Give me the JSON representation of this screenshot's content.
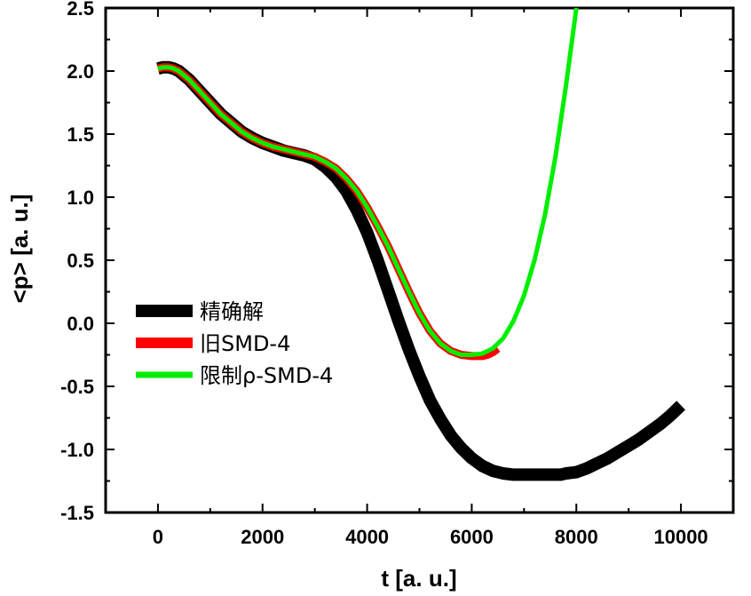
{
  "chart_data": {
    "type": "line",
    "xlabel": "t [a. u.]",
    "ylabel": "<p> [a. u.]",
    "xlim": [
      -1000,
      11000
    ],
    "ylim": [
      -1.5,
      2.5
    ],
    "xticks": [
      0,
      2000,
      4000,
      6000,
      8000,
      10000
    ],
    "xtick_labels": [
      "0",
      "2000",
      "4000",
      "6000",
      "8000",
      "10000"
    ],
    "yticks": [
      -1.5,
      -1.0,
      -0.5,
      0.0,
      0.5,
      1.0,
      1.5,
      2.0,
      2.5
    ],
    "ytick_labels": [
      "-1.5",
      "-1.0",
      "-0.5",
      "0.0",
      "0.5",
      "1.0",
      "1.5",
      "2.0",
      "2.5"
    ],
    "grid": false,
    "legend_position": "center-left",
    "series": [
      {
        "name": "精确解",
        "color": "#000000",
        "x": [
          0,
          100,
          200,
          300,
          400,
          600,
          800,
          1000,
          1200,
          1400,
          1600,
          1800,
          2000,
          2200,
          2400,
          2600,
          2800,
          3000,
          3200,
          3400,
          3600,
          3800,
          4000,
          4200,
          4400,
          4600,
          4800,
          5000,
          5200,
          5400,
          5600,
          5800,
          6000,
          6200,
          6400,
          6600,
          6800,
          7000,
          7200,
          7400,
          7600,
          7700,
          7800,
          8000,
          8200,
          8400,
          8600,
          8800,
          9000,
          9200,
          9400,
          9600,
          9800,
          10000
        ],
        "y": [
          2.02,
          2.03,
          2.03,
          2.02,
          2.0,
          1.93,
          1.84,
          1.75,
          1.66,
          1.59,
          1.52,
          1.47,
          1.43,
          1.4,
          1.37,
          1.35,
          1.33,
          1.3,
          1.24,
          1.16,
          1.05,
          0.9,
          0.72,
          0.5,
          0.26,
          0.02,
          -0.21,
          -0.42,
          -0.61,
          -0.76,
          -0.89,
          -0.99,
          -1.07,
          -1.13,
          -1.17,
          -1.19,
          -1.2,
          -1.2,
          -1.2,
          -1.2,
          -1.2,
          -1.2,
          -1.19,
          -1.18,
          -1.15,
          -1.11,
          -1.07,
          -1.02,
          -0.97,
          -0.92,
          -0.86,
          -0.8,
          -0.73,
          -0.65
        ]
      },
      {
        "name": "旧SMD-4",
        "color": "#ff0000",
        "x": [
          0,
          100,
          200,
          300,
          400,
          600,
          800,
          1000,
          1200,
          1400,
          1600,
          1800,
          2000,
          2200,
          2400,
          2600,
          2800,
          3000,
          3200,
          3400,
          3600,
          3800,
          4000,
          4200,
          4400,
          4600,
          4800,
          5000,
          5200,
          5400,
          5600,
          5800,
          6000,
          6200,
          6300,
          6400,
          6500
        ],
        "y": [
          2.02,
          2.03,
          2.03,
          2.02,
          2.0,
          1.93,
          1.84,
          1.75,
          1.66,
          1.59,
          1.52,
          1.47,
          1.43,
          1.4,
          1.38,
          1.36,
          1.34,
          1.32,
          1.28,
          1.23,
          1.15,
          1.05,
          0.92,
          0.77,
          0.61,
          0.43,
          0.25,
          0.08,
          -0.06,
          -0.16,
          -0.22,
          -0.25,
          -0.26,
          -0.26,
          -0.25,
          -0.23,
          -0.2
        ]
      },
      {
        "name": "限制ρ-SMD-4",
        "color": "#00ee00",
        "x": [
          0,
          100,
          200,
          300,
          400,
          600,
          800,
          1000,
          1200,
          1400,
          1600,
          1800,
          2000,
          2200,
          2400,
          2600,
          2800,
          3000,
          3200,
          3400,
          3600,
          3800,
          4000,
          4200,
          4400,
          4600,
          4800,
          5000,
          5200,
          5400,
          5600,
          5800,
          6000,
          6200,
          6400,
          6600,
          6800,
          7000,
          7200,
          7400,
          7600,
          7800,
          8000
        ],
        "y": [
          2.02,
          2.03,
          2.03,
          2.02,
          2.0,
          1.93,
          1.84,
          1.75,
          1.66,
          1.59,
          1.52,
          1.47,
          1.43,
          1.4,
          1.38,
          1.36,
          1.34,
          1.32,
          1.28,
          1.23,
          1.15,
          1.05,
          0.92,
          0.77,
          0.61,
          0.43,
          0.25,
          0.08,
          -0.06,
          -0.16,
          -0.22,
          -0.25,
          -0.25,
          -0.24,
          -0.2,
          -0.12,
          0.02,
          0.22,
          0.5,
          0.86,
          1.32,
          1.88,
          2.5
        ]
      }
    ]
  }
}
